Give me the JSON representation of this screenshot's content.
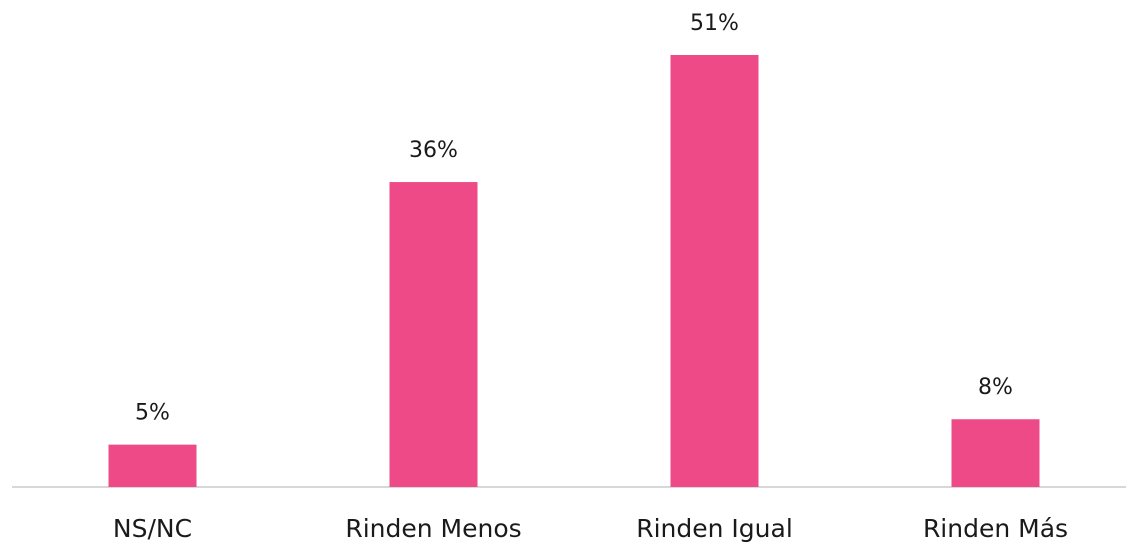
{
  "chart_data": {
    "type": "bar",
    "categories": [
      "NS/NC",
      "Rinden Menos",
      "Rinden Igual",
      "Rinden Más"
    ],
    "values": [
      5,
      36,
      51,
      8
    ],
    "value_labels": [
      "5%",
      "36%",
      "51%",
      "8%"
    ],
    "color": "#ee4a87"
  }
}
